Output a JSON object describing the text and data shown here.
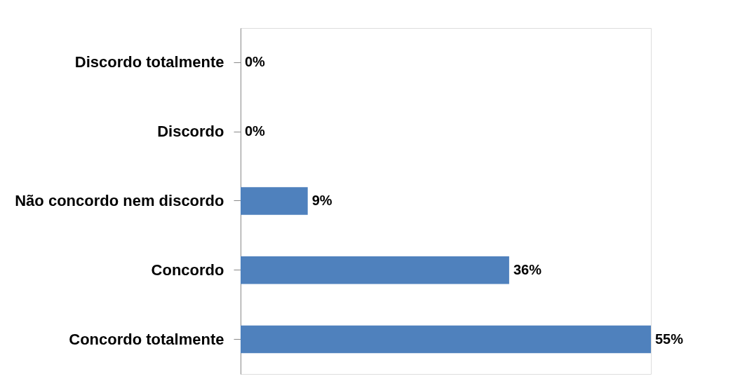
{
  "chart_data": {
    "type": "bar",
    "orientation": "horizontal",
    "categories": [
      "Discordo totalmente",
      "Discordo",
      "Não concordo nem discordo",
      "Concordo",
      "Concordo totalmente"
    ],
    "values": [
      0,
      0,
      9,
      36,
      55
    ],
    "value_labels": [
      "0%",
      "0%",
      "9%",
      "36%",
      "55%"
    ],
    "color": "#4f81bd"
  }
}
